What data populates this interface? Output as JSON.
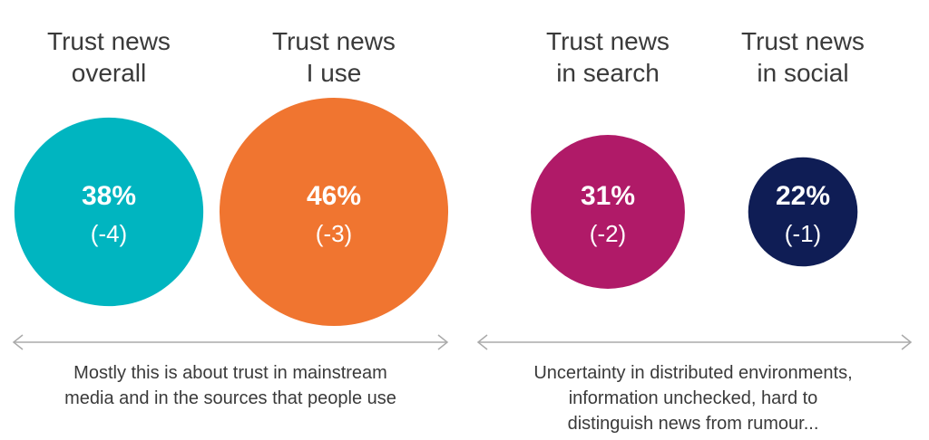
{
  "chart_data": {
    "type": "bubble",
    "categories": [
      "Trust news\noverall",
      "Trust news\nI use",
      "Trust news\nin search",
      "Trust news\nin social"
    ],
    "values": [
      38,
      46,
      31,
      22
    ],
    "value_labels": [
      "38%",
      "46%",
      "31%",
      "22%"
    ],
    "change": [
      -4,
      -3,
      -2,
      -1
    ],
    "change_labels": [
      "(-4)",
      "(-3)",
      "(-2)",
      "(-1)"
    ],
    "colors": [
      "#00b5c0",
      "#f07530",
      "#b01a68",
      "#0f1d55"
    ],
    "annotations": [
      "Mostly this is about trust in mainstream\nmedia and in the sources that people use",
      "Uncertainty in distributed environments,\ninformation unchecked, hard to\ndistinguish news from rumour..."
    ]
  }
}
